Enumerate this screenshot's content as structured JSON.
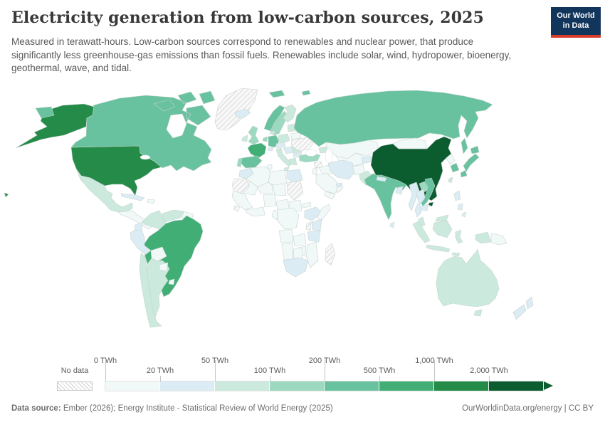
{
  "header": {
    "title": "Electricity generation from low-carbon sources, 2025",
    "subtitle": "Measured in terawatt-hours. Low-carbon sources correspond to renewables and nuclear power, that produce significantly less greenhouse-gas emissions than fossil fuels. Renewables include solar, wind, hydropower, bioenergy, geothermal, wave, and tidal.",
    "logo": {
      "line1": "Our World",
      "line2": "in Data",
      "bg": "#12355c",
      "accent": "#d93b2a"
    }
  },
  "legend": {
    "no_data_label": "No data",
    "unit": "TWh",
    "ticks": [
      "0 TWh",
      "20 TWh",
      "50 TWh",
      "100 TWh",
      "200 TWh",
      "500 TWh",
      "1,000 TWh",
      "2,000 TWh"
    ]
  },
  "footer": {
    "source_label": "Data source:",
    "source_text": " Ember (2026); Energy Institute - Statistical Review of World Energy (2025)",
    "credit": "OurWorldinData.org/energy | CC BY"
  },
  "chart_data": {
    "type": "heatmap",
    "subtype": "choropleth-world-map",
    "title": "Electricity generation from low-carbon sources, 2025",
    "unit": "TWh",
    "legend_position": "bottom",
    "bins": [
      {
        "range": "0–20 TWh",
        "color": "#f1f8f8"
      },
      {
        "range": "20–50 TWh",
        "color": "#dcecf4"
      },
      {
        "range": "50–100 TWh",
        "color": "#cbe9dc"
      },
      {
        "range": "100–200 TWh",
        "color": "#9cd9c0"
      },
      {
        "range": "200–500 TWh",
        "color": "#69c29f"
      },
      {
        "range": "500–1,000 TWh",
        "color": "#41ae76"
      },
      {
        "range": "1,000–2,000 TWh",
        "color": "#258b48"
      },
      {
        "range": "2,000+ TWh",
        "color": "#0b5c2e"
      }
    ],
    "no_data": {
      "label": "No data",
      "pattern": "diagonal-hatch"
    },
    "countries": [
      {
        "id": "united-states",
        "name": "United States",
        "bin_index": 6
      },
      {
        "id": "canada",
        "name": "Canada",
        "bin_index": 4
      },
      {
        "id": "greenland",
        "name": "Greenland",
        "bin_index": -1
      },
      {
        "id": "mexico",
        "name": "Mexico",
        "bin_index": 2
      },
      {
        "id": "central-america",
        "name": "Central America",
        "bin_index": 0
      },
      {
        "id": "cuba",
        "name": "Cuba",
        "bin_index": 1
      },
      {
        "id": "hispaniola",
        "name": "Hispaniola",
        "bin_index": 0
      },
      {
        "id": "colombia",
        "name": "Colombia",
        "bin_index": 2
      },
      {
        "id": "venezuela",
        "name": "Venezuela",
        "bin_index": 2
      },
      {
        "id": "guyanas",
        "name": "Guyanas",
        "bin_index": 0
      },
      {
        "id": "ecuador",
        "name": "Ecuador",
        "bin_index": 1
      },
      {
        "id": "peru",
        "name": "Peru",
        "bin_index": 1
      },
      {
        "id": "bolivia",
        "name": "Bolivia",
        "bin_index": 0
      },
      {
        "id": "brazil",
        "name": "Brazil",
        "bin_index": 5
      },
      {
        "id": "paraguay",
        "name": "Paraguay",
        "bin_index": 0
      },
      {
        "id": "uruguay",
        "name": "Uruguay",
        "bin_index": 0
      },
      {
        "id": "argentina",
        "name": "Argentina",
        "bin_index": 2
      },
      {
        "id": "chile",
        "name": "Chile",
        "bin_index": 2
      },
      {
        "id": "iceland",
        "name": "Iceland",
        "bin_index": 1
      },
      {
        "id": "united-kingdom",
        "name": "United Kingdom",
        "bin_index": 3
      },
      {
        "id": "ireland",
        "name": "Ireland",
        "bin_index": 2
      },
      {
        "id": "portugal",
        "name": "Portugal",
        "bin_index": 3
      },
      {
        "id": "spain",
        "name": "Spain",
        "bin_index": 4
      },
      {
        "id": "france",
        "name": "France",
        "bin_index": 5
      },
      {
        "id": "benelux",
        "name": "Belgium-Netherlands",
        "bin_index": 3
      },
      {
        "id": "germany",
        "name": "Germany",
        "bin_index": 4
      },
      {
        "id": "denmark",
        "name": "Denmark",
        "bin_index": 2
      },
      {
        "id": "norway",
        "name": "Norway",
        "bin_index": 4
      },
      {
        "id": "svalbard",
        "name": "Svalbard",
        "bin_index": 4
      },
      {
        "id": "sweden",
        "name": "Sweden",
        "bin_index": 3
      },
      {
        "id": "finland",
        "name": "Finland",
        "bin_index": 2
      },
      {
        "id": "baltics",
        "name": "Baltic states",
        "bin_index": 2
      },
      {
        "id": "belarus",
        "name": "Belarus",
        "bin_index": 0
      },
      {
        "id": "poland",
        "name": "Poland",
        "bin_index": 2
      },
      {
        "id": "czechia-austria",
        "name": "Czechia-Austria",
        "bin_index": 1
      },
      {
        "id": "switzerland",
        "name": "Switzerland",
        "bin_index": 1
      },
      {
        "id": "italy",
        "name": "Italy",
        "bin_index": 2
      },
      {
        "id": "hungary-balkans",
        "name": "Hungary-Balkans",
        "bin_index": 1
      },
      {
        "id": "romania",
        "name": "Romania",
        "bin_index": 2
      },
      {
        "id": "bulgaria",
        "name": "Bulgaria",
        "bin_index": 1
      },
      {
        "id": "greece",
        "name": "Greece",
        "bin_index": 2
      },
      {
        "id": "ukraine",
        "name": "Ukraine",
        "bin_index": -1
      },
      {
        "id": "russia",
        "name": "Russia",
        "bin_index": 4
      },
      {
        "id": "kazakhstan",
        "name": "Kazakhstan",
        "bin_index": 0
      },
      {
        "id": "central-asia",
        "name": "Central Asia",
        "bin_index": 0
      },
      {
        "id": "kyrgyzstan-tajikistan",
        "name": "Kyrgyzstan-Tajikistan",
        "bin_index": 1
      },
      {
        "id": "caucasus",
        "name": "Caucasus",
        "bin_index": 2
      },
      {
        "id": "turkey",
        "name": "Turkey",
        "bin_index": 3
      },
      {
        "id": "syria",
        "name": "Syria",
        "bin_index": -1
      },
      {
        "id": "iraq",
        "name": "Iraq",
        "bin_index": 0
      },
      {
        "id": "iran",
        "name": "Iran",
        "bin_index": 1
      },
      {
        "id": "israel-jordan",
        "name": "Israel-Jordan",
        "bin_index": 0
      },
      {
        "id": "saudi-arabia",
        "name": "Saudi Arabia",
        "bin_index": 0
      },
      {
        "id": "yemen-oman",
        "name": "Yemen-Oman",
        "bin_index": 0
      },
      {
        "id": "uae-qatar",
        "name": "UAE-Qatar",
        "bin_index": 1
      },
      {
        "id": "afghanistan",
        "name": "Afghanistan",
        "bin_index": 0
      },
      {
        "id": "pakistan",
        "name": "Pakistan",
        "bin_index": 2
      },
      {
        "id": "india",
        "name": "India",
        "bin_index": 4
      },
      {
        "id": "nepal",
        "name": "Nepal",
        "bin_index": 1
      },
      {
        "id": "bangladesh",
        "name": "Bangladesh",
        "bin_index": 1
      },
      {
        "id": "sri-lanka",
        "name": "Sri Lanka",
        "bin_index": 1
      },
      {
        "id": "china",
        "name": "China",
        "bin_index": 7
      },
      {
        "id": "mongolia",
        "name": "Mongolia",
        "bin_index": 0
      },
      {
        "id": "north-korea",
        "name": "North Korea",
        "bin_index": 0
      },
      {
        "id": "south-korea",
        "name": "South Korea",
        "bin_index": 4
      },
      {
        "id": "japan",
        "name": "Japan",
        "bin_index": 4
      },
      {
        "id": "taiwan",
        "name": "Taiwan",
        "bin_index": 2
      },
      {
        "id": "myanmar",
        "name": "Myanmar",
        "bin_index": 1
      },
      {
        "id": "thailand",
        "name": "Thailand",
        "bin_index": 1
      },
      {
        "id": "laos",
        "name": "Laos",
        "bin_index": 3
      },
      {
        "id": "vietnam",
        "name": "Vietnam",
        "bin_index": 4
      },
      {
        "id": "cambodia",
        "name": "Cambodia",
        "bin_index": 1
      },
      {
        "id": "malaysia",
        "name": "Malaysia",
        "bin_index": 2
      },
      {
        "id": "philippines",
        "name": "Philippines",
        "bin_index": 1
      },
      {
        "id": "indonesia",
        "name": "Indonesia",
        "bin_index": 2
      },
      {
        "id": "papua-new-guinea",
        "name": "Papua New Guinea",
        "bin_index": 0
      },
      {
        "id": "australia",
        "name": "Australia",
        "bin_index": 2
      },
      {
        "id": "new-zealand",
        "name": "New Zealand",
        "bin_index": 1
      },
      {
        "id": "morocco",
        "name": "Morocco",
        "bin_index": 1
      },
      {
        "id": "algeria",
        "name": "Algeria",
        "bin_index": 0
      },
      {
        "id": "tunisia",
        "name": "Tunisia",
        "bin_index": 0
      },
      {
        "id": "libya",
        "name": "Libya",
        "bin_index": 0
      },
      {
        "id": "egypt",
        "name": "Egypt",
        "bin_index": 1
      },
      {
        "id": "mauritania-western-sahara",
        "name": "Mauritania-Western Sahara",
        "bin_index": -1
      },
      {
        "id": "mali",
        "name": "Mali",
        "bin_index": 0
      },
      {
        "id": "niger",
        "name": "Niger",
        "bin_index": 0
      },
      {
        "id": "chad",
        "name": "Chad",
        "bin_index": 0
      },
      {
        "id": "sudan",
        "name": "Sudan",
        "bin_index": -1
      },
      {
        "id": "eritrea",
        "name": "Eritrea",
        "bin_index": 0
      },
      {
        "id": "ethiopia",
        "name": "Ethiopia",
        "bin_index": 1
      },
      {
        "id": "somalia",
        "name": "Somalia",
        "bin_index": 0
      },
      {
        "id": "south-sudan",
        "name": "South Sudan",
        "bin_index": 0
      },
      {
        "id": "uganda",
        "name": "Uganda",
        "bin_index": -1
      },
      {
        "id": "kenya",
        "name": "Kenya",
        "bin_index": 1
      },
      {
        "id": "tanzania",
        "name": "Tanzania",
        "bin_index": 1
      },
      {
        "id": "senegal-guinea",
        "name": "Senegal-Guinea",
        "bin_index": 0
      },
      {
        "id": "guinea",
        "name": "Guinea",
        "bin_index": -1
      },
      {
        "id": "ivory-coast-ghana",
        "name": "Ivory Coast-Ghana",
        "bin_index": 0
      },
      {
        "id": "nigeria",
        "name": "Nigeria",
        "bin_index": 0
      },
      {
        "id": "cameroon-car",
        "name": "Cameroon-Central Africa",
        "bin_index": 0
      },
      {
        "id": "gabon-congo",
        "name": "Gabon-Congo",
        "bin_index": 0
      },
      {
        "id": "drc",
        "name": "Democratic Republic of Congo",
        "bin_index": 0
      },
      {
        "id": "angola",
        "name": "Angola",
        "bin_index": 0
      },
      {
        "id": "zambia",
        "name": "Zambia",
        "bin_index": 0
      },
      {
        "id": "zimbabwe",
        "name": "Zimbabwe",
        "bin_index": 0
      },
      {
        "id": "mozambique",
        "name": "Mozambique",
        "bin_index": 0
      },
      {
        "id": "namibia",
        "name": "Namibia",
        "bin_index": 0
      },
      {
        "id": "botswana",
        "name": "Botswana",
        "bin_index": 0
      },
      {
        "id": "south-africa",
        "name": "South Africa",
        "bin_index": 1
      },
      {
        "id": "madagascar",
        "name": "Madagascar",
        "bin_index": -1
      }
    ]
  }
}
